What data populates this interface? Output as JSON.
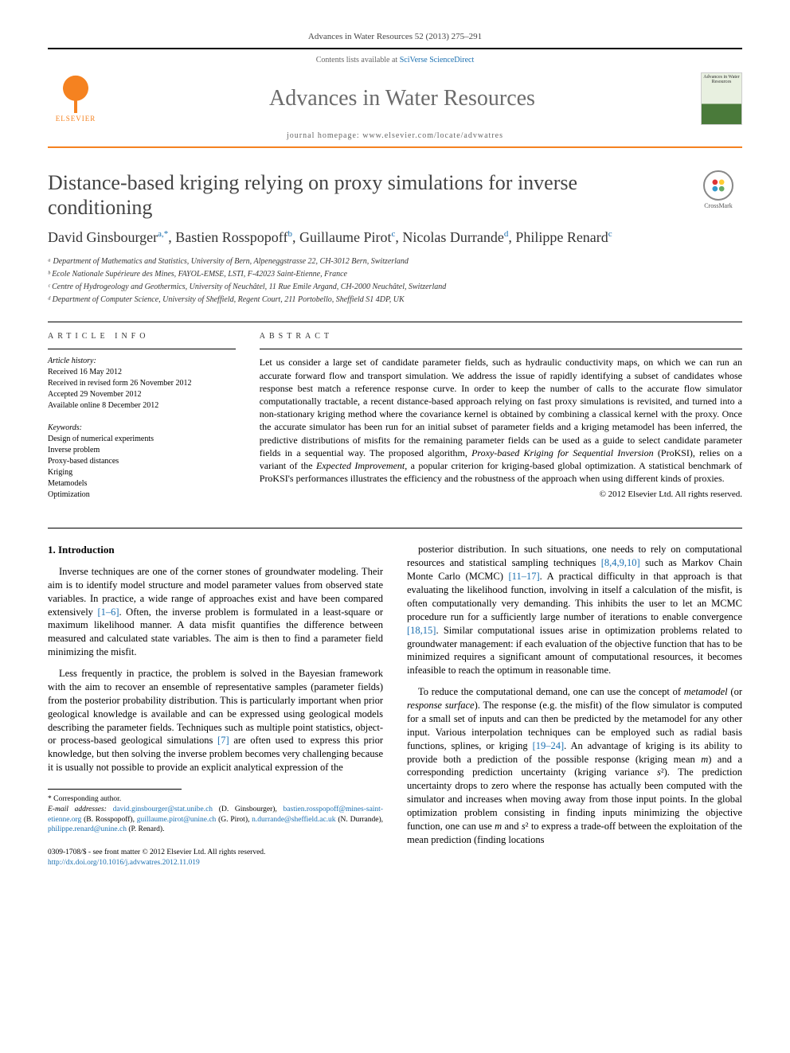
{
  "journal_header": "Advances in Water Resources 52 (2013) 275–291",
  "contents_prefix": "Contents lists available at ",
  "contents_link": "SciVerse ScienceDirect",
  "journal_name": "Advances in Water Resources",
  "elsevier_label": "ELSEVIER",
  "journal_cover_text": "Advances in Water Resources",
  "homepage_prefix": "journal homepage: ",
  "homepage_url": "www.elsevier.com/locate/advwatres",
  "crossmark_label": "CrossMark",
  "title": "Distance-based kriging relying on proxy simulations for inverse conditioning",
  "authors_html": "David Ginsbourger<sup>a,*</sup>, Bastien Rosspopoff<sup>b</sup>, Guillaume Pirot<sup>c</sup>, Nicolas Durrande<sup>d</sup>, Philippe Renard<sup>c</sup>",
  "affiliations": [
    "ᵃ Department of Mathematics and Statistics, University of Bern, Alpeneggstrasse 22, CH-3012 Bern, Switzerland",
    "ᵇ Ecole Nationale Supérieure des Mines, FAYOL-EMSE, LSTI, F-42023 Saint-Etienne, France",
    "ᶜ Centre of Hydrogeology and Geothermics, University of Neuchâtel, 11 Rue Emile Argand, CH-2000 Neuchâtel, Switzerland",
    "ᵈ Department of Computer Science, University of Sheffield, Regent Court, 211 Portobello, Sheffield S1 4DP, UK"
  ],
  "info_heading": "ARTICLE INFO",
  "abstract_heading": "ABSTRACT",
  "history_label": "Article history:",
  "history": [
    "Received 16 May 2012",
    "Received in revised form 26 November 2012",
    "Accepted 29 November 2012",
    "Available online 8 December 2012"
  ],
  "keywords_label": "Keywords:",
  "keywords": [
    "Design of numerical experiments",
    "Inverse problem",
    "Proxy-based distances",
    "Kriging",
    "Metamodels",
    "Optimization"
  ],
  "abstract": "Let us consider a large set of candidate parameter fields, such as hydraulic conductivity maps, on which we can run an accurate forward flow and transport simulation. We address the issue of rapidly identifying a subset of candidates whose response best match a reference response curve. In order to keep the number of calls to the accurate flow simulator computationally tractable, a recent distance-based approach relying on fast proxy simulations is revisited, and turned into a non-stationary kriging method where the covariance kernel is obtained by combining a classical kernel with the proxy. Once the accurate simulator has been run for an initial subset of parameter fields and a kriging metamodel has been inferred, the predictive distributions of misfits for the remaining parameter fields can be used as a guide to select candidate parameter fields in a sequential way. The proposed algorithm, Proxy-based Kriging for Sequential Inversion (ProKSI), relies on a variant of the Expected Improvement, a popular criterion for kriging-based global optimization. A statistical benchmark of ProKSI's performances illustrates the efficiency and the robustness of the approach when using different kinds of proxies.",
  "copyright": "© 2012 Elsevier Ltd. All rights reserved.",
  "intro_heading": "1. Introduction",
  "col1_p1": "Inverse techniques are one of the corner stones of groundwater modeling. Their aim is to identify model structure and model parameter values from observed state variables. In practice, a wide range of approaches exist and have been compared extensively [1–6]. Often, the inverse problem is formulated in a least-square or maximum likelihood manner. A data misfit quantifies the difference between measured and calculated state variables. The aim is then to find a parameter field minimizing the misfit.",
  "col1_p2": "Less frequently in practice, the problem is solved in the Bayesian framework with the aim to recover an ensemble of representative samples (parameter fields) from the posterior probability distribution. This is particularly important when prior geological knowledge is available and can be expressed using geological models describing the parameter fields. Techniques such as multiple point statistics, object- or process-based geological simulations [7] are often used to express this prior knowledge, but then solving the inverse problem becomes very challenging because it is usually not possible to provide an explicit analytical expression of the",
  "col2_p1": "posterior distribution. In such situations, one needs to rely on computational resources and statistical sampling techniques [8,4,9,10] such as Markov Chain Monte Carlo (MCMC) [11–17]. A practical difficulty in that approach is that evaluating the likelihood function, involving in itself a calculation of the misfit, is often computationally very demanding. This inhibits the user to let an MCMC procedure run for a sufficiently large number of iterations to enable convergence [18,15]. Similar computational issues arise in optimization problems related to groundwater management: if each evaluation of the objective function that has to be minimized requires a significant amount of computational resources, it becomes infeasible to reach the optimum in reasonable time.",
  "col2_p2": "To reduce the computational demand, one can use the concept of metamodel (or response surface). The response (e.g. the misfit) of the flow simulator is computed for a small set of inputs and can then be predicted by the metamodel for any other input. Various interpolation techniques can be employed such as radial basis functions, splines, or kriging [19–24]. An advantage of kriging is its ability to provide both a prediction of the possible response (kriging mean m) and a corresponding prediction uncertainty (kriging variance s²). The prediction uncertainty drops to zero where the response has actually been computed with the simulator and increases when moving away from those input points. In the global optimization problem consisting in finding inputs minimizing the objective function, one can use m and s² to express a trade-off between the exploitation of the mean prediction (finding locations",
  "corresponding": "* Corresponding author.",
  "emails_label": "E-mail addresses:",
  "emails_line": "david.ginsbourger@stat.unibe.ch (D. Ginsbourger), bastien.rosspopoff@mines-saint-etienne.org (B. Rosspopoff), guillaume.pirot@unine.ch (G. Pirot), n.durrande@sheffield.ac.uk (N. Durrande), philippe.renard@unine.ch (P. Renard).",
  "issn_line": "0309-1708/$ - see front matter © 2012 Elsevier Ltd. All rights reserved.",
  "doi_line": "http://dx.doi.org/10.1016/j.advwatres.2012.11.019",
  "colors": {
    "accent_orange": "#f58220",
    "link_blue": "#1a6fb0",
    "text_gray": "#444444"
  }
}
